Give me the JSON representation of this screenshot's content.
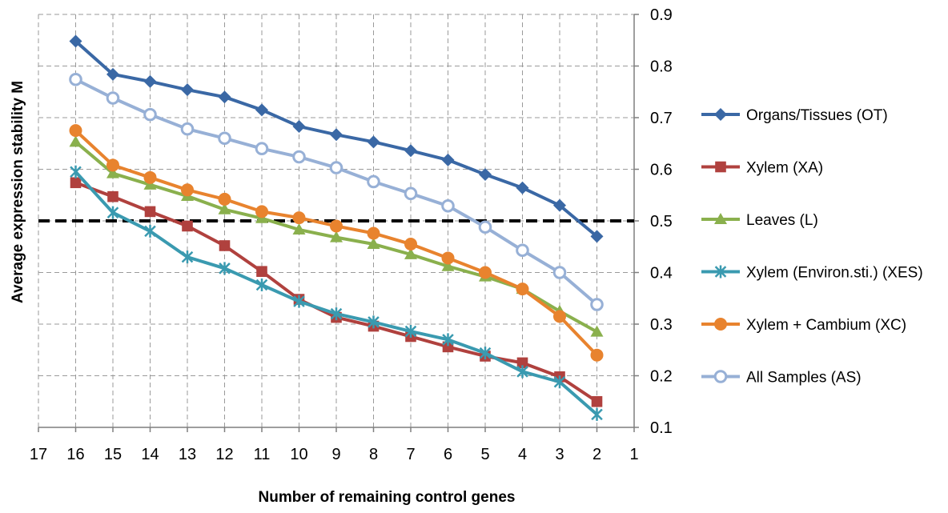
{
  "chart_data": {
    "type": "line",
    "xlabel": "Number of remaining control genes",
    "ylabel": "Average expression stability M",
    "x_reversed": true,
    "xlim": [
      1,
      17
    ],
    "ylim": [
      0.1,
      0.9
    ],
    "y_axis_side": "right",
    "x_ticks": [
      17,
      16,
      15,
      14,
      13,
      12,
      11,
      10,
      9,
      8,
      7,
      6,
      5,
      4,
      3,
      2,
      1
    ],
    "y_ticks": [
      0.1,
      0.2,
      0.3,
      0.4,
      0.5,
      0.6,
      0.7,
      0.8,
      0.9
    ],
    "y_tick_labels": [
      "0.1",
      "0.2",
      "0.3",
      "0.4",
      "0.5",
      "0.6",
      "0.7",
      "0.8",
      "0.9"
    ],
    "grid": true,
    "legend_position": "right",
    "reference_line": {
      "y": 0.5,
      "style": "dashed",
      "color": "#000000"
    },
    "x": [
      16,
      15,
      14,
      13,
      12,
      11,
      10,
      9,
      8,
      7,
      6,
      5,
      4,
      3,
      2
    ],
    "series": [
      {
        "name": "Organs/Tissues (OT)",
        "color": "#3A68A5",
        "marker": "diamond",
        "values": [
          0.848,
          0.784,
          0.77,
          0.754,
          0.74,
          0.715,
          0.683,
          0.667,
          0.653,
          0.636,
          0.618,
          0.59,
          0.564,
          0.53,
          0.47
        ]
      },
      {
        "name": "Xylem (XA)",
        "color": "#B0413E",
        "marker": "square",
        "values": [
          0.574,
          0.547,
          0.518,
          0.49,
          0.452,
          0.402,
          0.348,
          0.313,
          0.296,
          0.276,
          0.256,
          0.238,
          0.225,
          0.198,
          0.15
        ]
      },
      {
        "name": "Leaves (L)",
        "color": "#8AB04D",
        "marker": "triangle",
        "values": [
          0.653,
          0.592,
          0.57,
          0.548,
          0.522,
          0.505,
          0.483,
          0.468,
          0.455,
          0.435,
          0.412,
          0.392,
          0.368,
          0.325,
          0.285
        ]
      },
      {
        "name": "Xylem (Environ.sti.) (XES)",
        "color": "#3A9AB0",
        "marker": "star",
        "values": [
          0.595,
          0.516,
          0.48,
          0.43,
          0.408,
          0.376,
          0.344,
          0.32,
          0.304,
          0.286,
          0.27,
          0.244,
          0.208,
          0.188,
          0.125
        ]
      },
      {
        "name": "Xylem + Cambium (XC)",
        "color": "#E8832E",
        "marker": "circle",
        "values": [
          0.675,
          0.608,
          0.584,
          0.56,
          0.542,
          0.518,
          0.506,
          0.49,
          0.476,
          0.455,
          0.428,
          0.4,
          0.368,
          0.315,
          0.24
        ]
      },
      {
        "name": "All Samples (AS)",
        "color": "#97B0D6",
        "marker": "open-circle",
        "values": [
          0.774,
          0.738,
          0.706,
          0.678,
          0.66,
          0.64,
          0.624,
          0.603,
          0.576,
          0.553,
          0.529,
          0.488,
          0.443,
          0.4,
          0.338
        ]
      }
    ]
  }
}
